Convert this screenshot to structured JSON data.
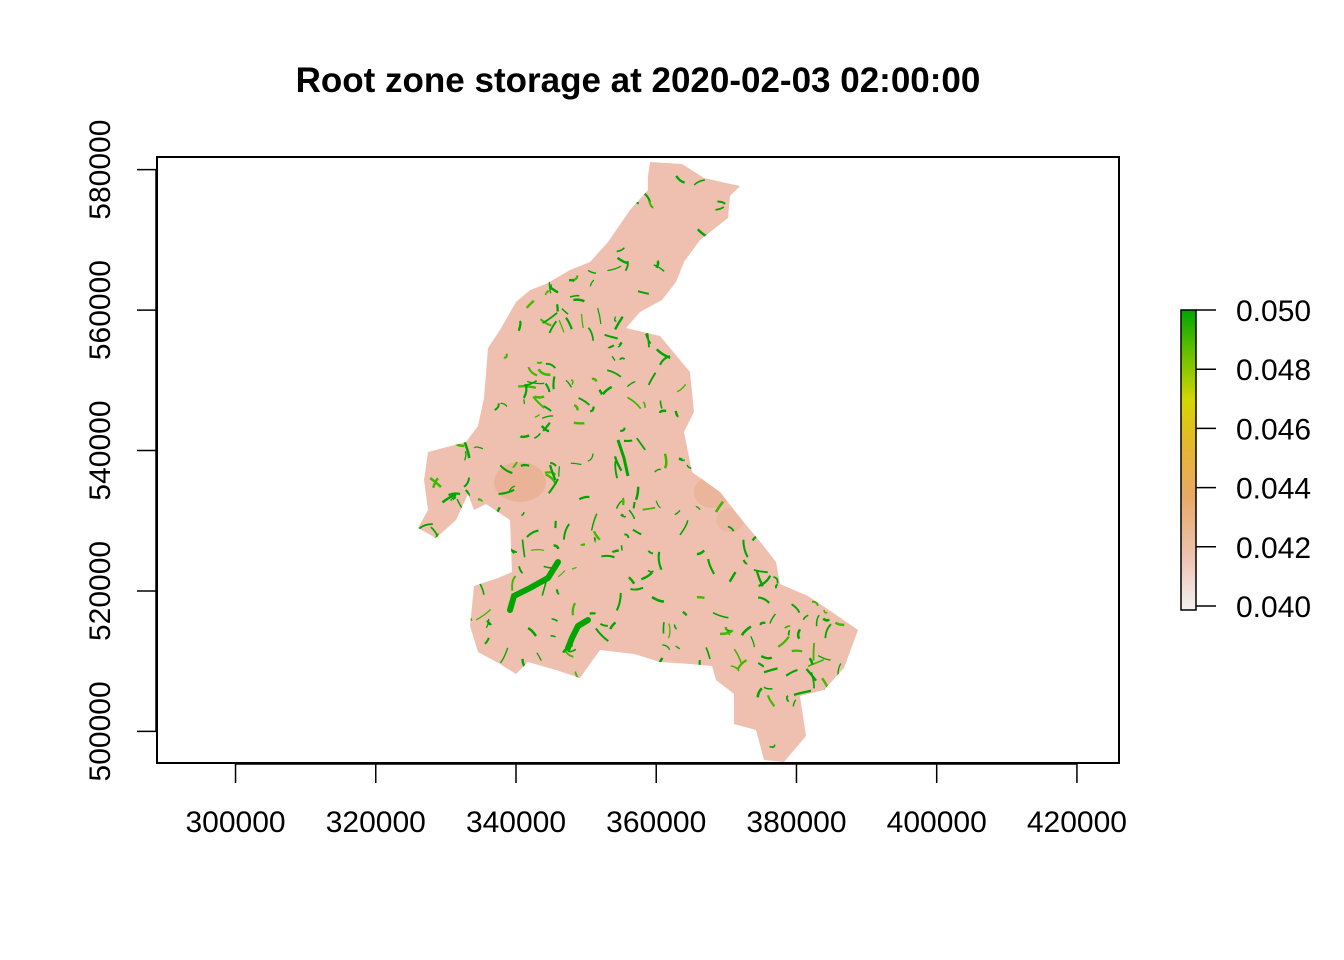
{
  "title": "Root zone storage at 2020-02-03 02:00:00",
  "axes": {
    "x": {
      "ticks": [
        {
          "value": 300000,
          "label": "300000"
        },
        {
          "value": 320000,
          "label": "320000"
        },
        {
          "value": 340000,
          "label": "340000"
        },
        {
          "value": 360000,
          "label": "360000"
        },
        {
          "value": 380000,
          "label": "380000"
        },
        {
          "value": 400000,
          "label": "400000"
        },
        {
          "value": 420000,
          "label": "420000"
        }
      ],
      "range": [
        288800,
        426000
      ]
    },
    "y": {
      "ticks": [
        {
          "value": 500000,
          "label": "500000"
        },
        {
          "value": 520000,
          "label": "520000"
        },
        {
          "value": 540000,
          "label": "540000"
        },
        {
          "value": 560000,
          "label": "560000"
        },
        {
          "value": 580000,
          "label": "580000"
        }
      ],
      "range": [
        495500,
        581800
      ]
    }
  },
  "legend": {
    "ticks": [
      {
        "value": 0.04,
        "label": "0.040"
      },
      {
        "value": 0.042,
        "label": "0.042"
      },
      {
        "value": 0.044,
        "label": "0.044"
      },
      {
        "value": 0.046,
        "label": "0.046"
      },
      {
        "value": 0.048,
        "label": "0.048"
      },
      {
        "value": 0.05,
        "label": "0.050"
      }
    ],
    "range": [
      0.04,
      0.05
    ],
    "colors": [
      "#f2f2f2",
      "#eec2b0",
      "#e8a966",
      "#e5b62e",
      "#d4d600",
      "#6cc100",
      "#00a600"
    ]
  },
  "colors": {
    "basin_fill": "#efc0b0",
    "basin_dry": "#e8ae8e",
    "stream": "#00a600",
    "stream_light": "#3fb800"
  }
}
